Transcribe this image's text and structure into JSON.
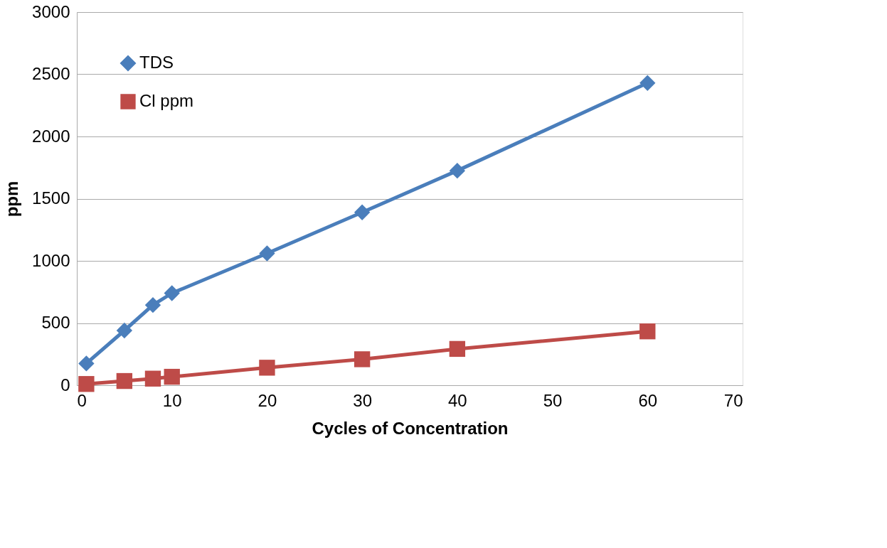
{
  "chart_data": {
    "type": "line",
    "xlabel": "Cycles of Concentration",
    "ylabel": "ppm",
    "x": [
      1,
      5,
      8,
      10,
      20,
      30,
      40,
      60
    ],
    "series": [
      {
        "name": "TDS",
        "color": "#4a7ebb",
        "marker": "diamond",
        "values": [
          175,
          440,
          645,
          740,
          1060,
          1390,
          1725,
          2430
        ]
      },
      {
        "name": "Cl ppm",
        "color": "#be4b48",
        "marker": "square",
        "values": [
          10,
          34,
          53,
          68,
          141,
          209,
          292,
          433
        ]
      }
    ],
    "xlim": [
      0,
      70
    ],
    "xticks": [
      0,
      10,
      20,
      30,
      40,
      50,
      60,
      70
    ],
    "ylim": [
      0,
      3000
    ],
    "yticks": [
      0,
      500,
      1000,
      1500,
      2000,
      2500,
      3000
    ],
    "grid": "y",
    "legend": "top left",
    "line_style": "solid"
  }
}
